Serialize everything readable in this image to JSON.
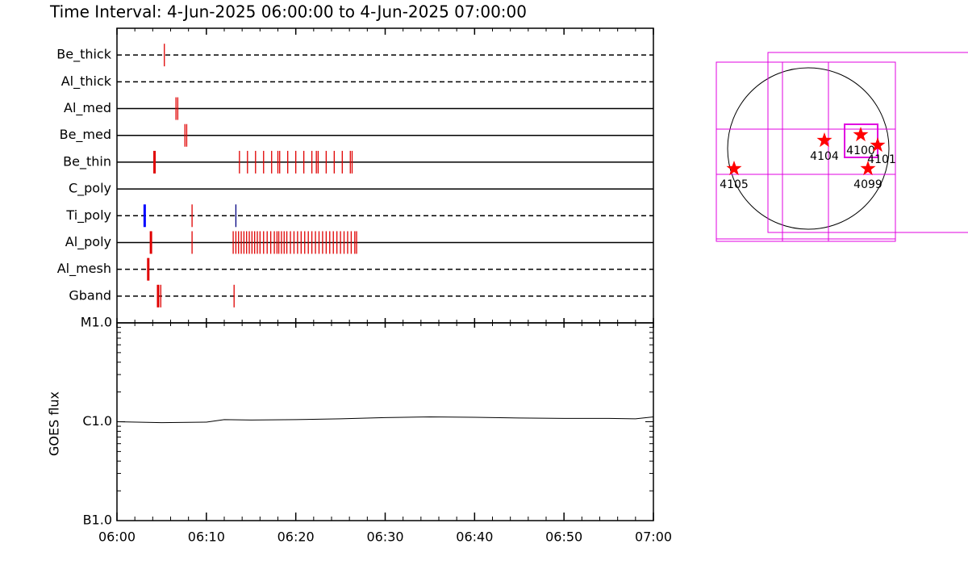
{
  "chart_data": [
    {
      "type": "timeline",
      "title": "Time Interval:  4-Jun-2025 06:00:00 to  4-Jun-2025 07:00:00",
      "color": "#e00000",
      "filters": [
        {
          "name": "Be_thick",
          "style": "dashed",
          "times": [
            5.3
          ]
        },
        {
          "name": "Al_thick",
          "style": "dashed",
          "times": []
        },
        {
          "name": "Al_med",
          "style": "solid",
          "times": [
            6.6,
            6.8
          ]
        },
        {
          "name": "Be_med",
          "style": "solid",
          "times": [
            7.6,
            7.8
          ]
        },
        {
          "name": "Be_thin",
          "style": "solid",
          "times": [
            4.2,
            13.7,
            14.6,
            15.5,
            16.4,
            17.3,
            18.0,
            18.2,
            19.1,
            20.0,
            20.9,
            21.8,
            22.3,
            22.5,
            23.4,
            24.3,
            25.2,
            26.1,
            26.3
          ]
        },
        {
          "name": "C_poly",
          "style": "solid",
          "times": []
        },
        {
          "name": "Ti_poly",
          "style": "dashed",
          "times": [
            3.1,
            8.4,
            13.3
          ],
          "colors": [
            "#0000ff",
            "#e00000",
            "#000080"
          ]
        },
        {
          "name": "Al_poly",
          "style": "solid",
          "times": [
            3.8,
            8.4,
            13.0,
            13.3,
            13.6,
            13.9,
            14.2,
            14.5,
            14.8,
            15.1,
            15.4,
            15.7,
            16.0,
            16.4,
            16.8,
            17.2,
            17.6,
            17.9,
            18.1,
            18.4,
            18.7,
            19.0,
            19.4,
            19.8,
            20.2,
            20.6,
            21.0,
            21.4,
            21.8,
            22.2,
            22.6,
            23.0,
            23.4,
            23.8,
            24.2,
            24.6,
            25.0,
            25.4,
            25.8,
            26.2,
            26.6,
            26.8
          ]
        },
        {
          "name": "Al_mesh",
          "style": "dashed",
          "times": [
            3.5
          ]
        },
        {
          "name": "Gband",
          "style": "dashed",
          "times": [
            4.6,
            4.9,
            13.1
          ]
        }
      ]
    },
    {
      "type": "line",
      "ylabel": "GOES flux",
      "log_y": true,
      "color": "#000000",
      "xlim": [
        0,
        60
      ],
      "xticks": [
        {
          "value": 0,
          "label": "06:00"
        },
        {
          "value": 10,
          "label": "06:10"
        },
        {
          "value": 20,
          "label": "06:20"
        },
        {
          "value": 30,
          "label": "06:30"
        },
        {
          "value": 40,
          "label": "06:40"
        },
        {
          "value": 50,
          "label": "06:50"
        },
        {
          "value": 60,
          "label": "07:00"
        }
      ],
      "ylim": [
        1e-07,
        1e-05
      ],
      "yticks": [
        {
          "value": 1e-05,
          "label": "M1.0"
        },
        {
          "value": 1e-06,
          "label": "C1.0"
        },
        {
          "value": 1e-07,
          "label": "B1.0"
        }
      ],
      "x": [
        0,
        5,
        10,
        12,
        15,
        20,
        25,
        30,
        35,
        40,
        45,
        50,
        55,
        58,
        60
      ],
      "values": [
        1e-06,
        9.8e-07,
        9.9e-07,
        1.05e-06,
        1.04e-06,
        1.05e-06,
        1.07e-06,
        1.1e-06,
        1.12e-06,
        1.11e-06,
        1.09e-06,
        1.08e-06,
        1.08e-06,
        1.07e-06,
        1.12e-06
      ]
    },
    {
      "type": "map",
      "color": "#ff0000",
      "labels": [
        "4105",
        "4104",
        "4100",
        "4101",
        "4099"
      ]
    }
  ]
}
